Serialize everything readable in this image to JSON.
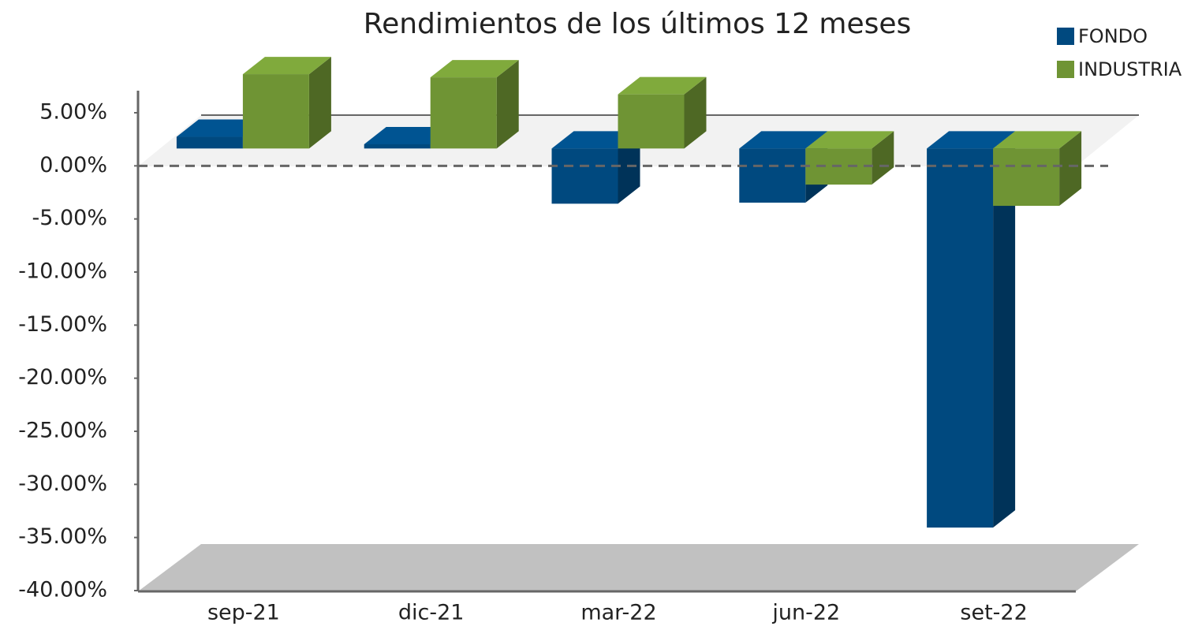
{
  "chart_data": {
    "type": "bar3d",
    "title": "Rendimientos de los últimos 12 meses",
    "categories": [
      "sep-21",
      "dic-21",
      "mar-22",
      "jun-22",
      "set-22"
    ],
    "series": [
      {
        "name": "FONDO",
        "color": "#00497f",
        "values": [
          1.1,
          0.4,
          -5.2,
          -5.1,
          -35.7
        ]
      },
      {
        "name": "INDUSTRIA",
        "color": "#6f9434",
        "values": [
          7.0,
          6.7,
          5.1,
          -3.4,
          -5.4
        ]
      }
    ],
    "ylim": [
      -40,
      5
    ],
    "yticks": [
      {
        "value": 5,
        "label": "5.00%"
      },
      {
        "value": 0,
        "label": "0.00%"
      },
      {
        "value": -5,
        "label": "-5.00%"
      },
      {
        "value": -10,
        "label": "-10.00%"
      },
      {
        "value": -15,
        "label": "-15.00%"
      },
      {
        "value": -20,
        "label": "-20.00%"
      },
      {
        "value": -25,
        "label": "-25.00%"
      },
      {
        "value": -30,
        "label": "-30.00%"
      },
      {
        "value": -35,
        "label": "-35.00%"
      },
      {
        "value": -40,
        "label": "-40.00%"
      }
    ],
    "legend": "top-right"
  }
}
